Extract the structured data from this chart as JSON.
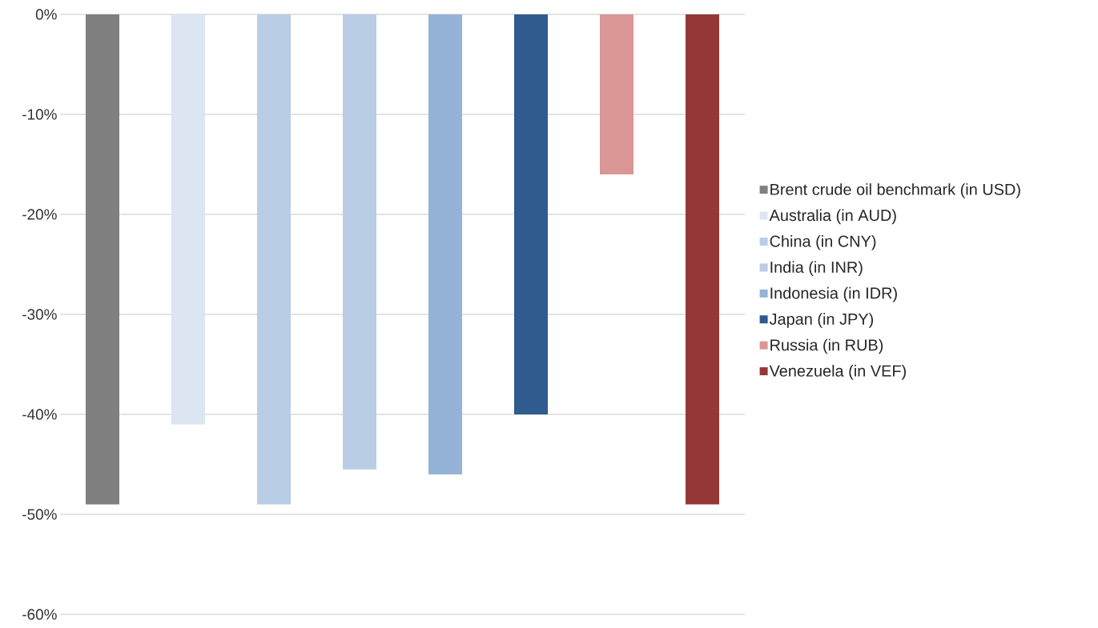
{
  "chart_data": {
    "type": "bar",
    "categories": [
      null
    ],
    "series": [
      {
        "name": "Brent crude oil benchmark (in USD)",
        "color": "#7f7f7f",
        "values": [
          -49
        ]
      },
      {
        "name": "Australia  (in AUD)",
        "color": "#dce6f2",
        "values": [
          -41
        ]
      },
      {
        "name": "China (in CNY)",
        "color": "#b9cde5",
        "values": [
          -49
        ]
      },
      {
        "name": "India (in INR)",
        "color": "#b9cde5",
        "values": [
          -45.5
        ]
      },
      {
        "name": "Indonesia (in IDR)",
        "color": "#95b3d7",
        "values": [
          -46
        ]
      },
      {
        "name": "Japan (in JPY)",
        "color": "#2f5b8e",
        "values": [
          -40
        ]
      },
      {
        "name": "Russia (in RUB)",
        "color": "#d99694",
        "values": [
          -16
        ]
      },
      {
        "name": "Venezuela (in VEF)",
        "color": "#953735",
        "values": [
          -49
        ]
      }
    ],
    "ylim": [
      -60,
      0
    ],
    "yticks": [
      {
        "value": -60,
        "label": "-60%"
      },
      {
        "value": -50,
        "label": "-50%"
      },
      {
        "value": -40,
        "label": "-40%"
      },
      {
        "value": -30,
        "label": "-30%"
      },
      {
        "value": -20,
        "label": "-20%"
      },
      {
        "value": -10,
        "label": "-10%"
      },
      {
        "value": 0,
        "label": "0%"
      }
    ],
    "grid": "y",
    "legend": "right"
  }
}
